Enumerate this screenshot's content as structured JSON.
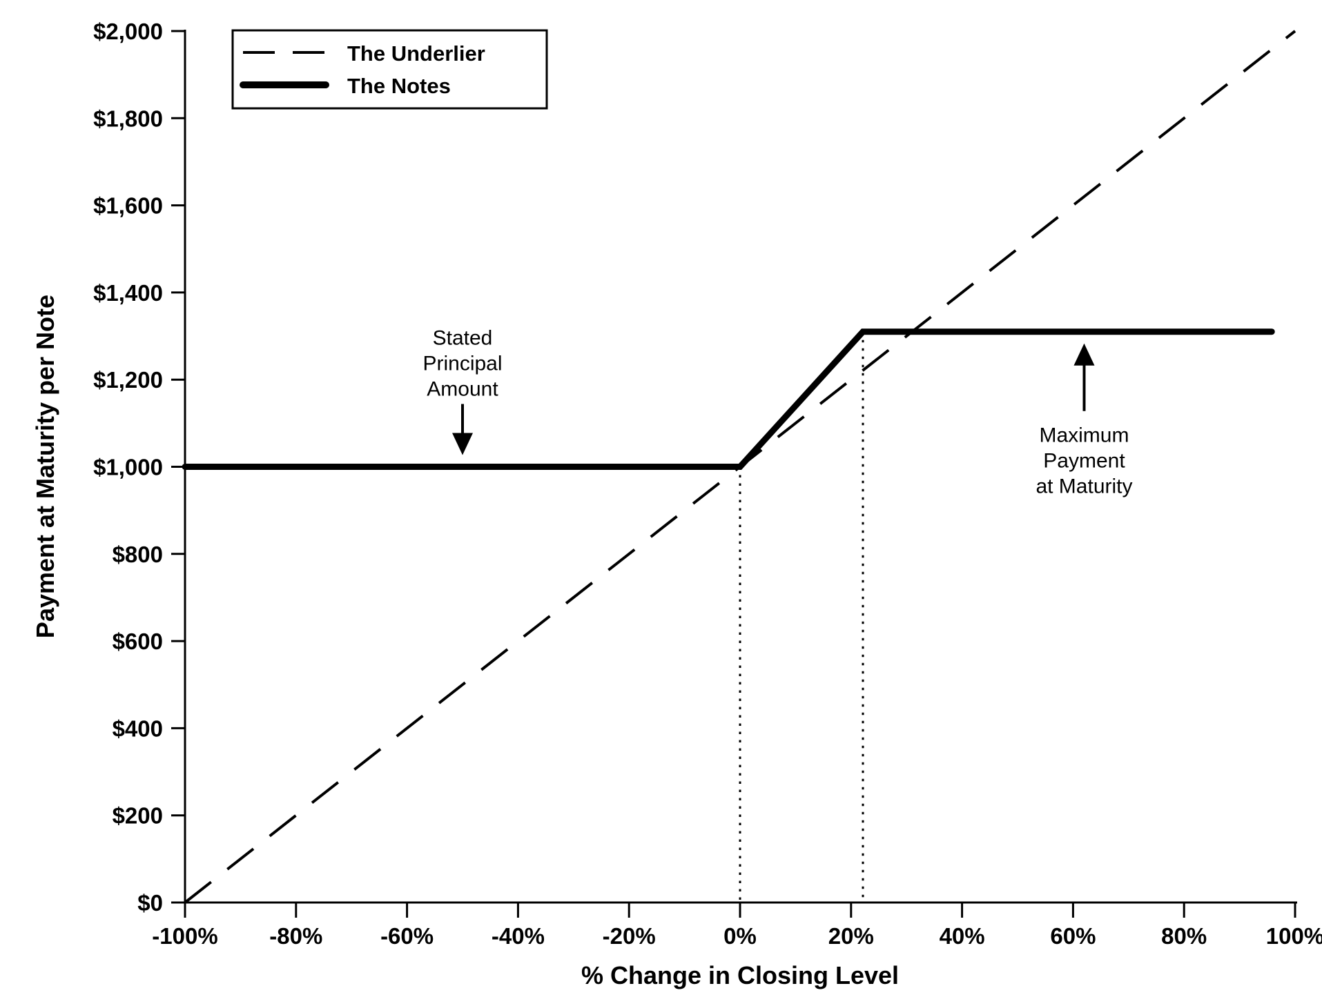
{
  "chart_data": {
    "type": "line",
    "title": "",
    "xlabel": "% Change in Closing Level",
    "ylabel": "Payment at Maturity per Note",
    "xlim": [
      -100,
      100
    ],
    "ylim": [
      0,
      2000
    ],
    "grid": false,
    "background_color": "#ffffff",
    "line_color": "#000000",
    "x_ticks": [
      {
        "value": -100,
        "label": "-100%"
      },
      {
        "value": -80,
        "label": "-80%"
      },
      {
        "value": -60,
        "label": "-60%"
      },
      {
        "value": -40,
        "label": "-40%"
      },
      {
        "value": -20,
        "label": "-20%"
      },
      {
        "value": 0,
        "label": "0%"
      },
      {
        "value": 20,
        "label": "20%"
      },
      {
        "value": 40,
        "label": "40%"
      },
      {
        "value": 60,
        "label": "60%"
      },
      {
        "value": 80,
        "label": "80%"
      },
      {
        "value": 100,
        "label": "100%"
      }
    ],
    "y_ticks": [
      {
        "value": 0,
        "label": "$0"
      },
      {
        "value": 200,
        "label": "$200"
      },
      {
        "value": 400,
        "label": "$400"
      },
      {
        "value": 600,
        "label": "$600"
      },
      {
        "value": 800,
        "label": "$800"
      },
      {
        "value": 1000,
        "label": "$1,000"
      },
      {
        "value": 1200,
        "label": "$1,200"
      },
      {
        "value": 1400,
        "label": "$1,400"
      },
      {
        "value": 1600,
        "label": "$1,600"
      },
      {
        "value": 1800,
        "label": "$1,800"
      },
      {
        "value": 2000,
        "label": "$2,000"
      }
    ],
    "legend": {
      "position": "top-left",
      "entries": [
        {
          "name": "The Underlier",
          "style": "dashed"
        },
        {
          "name": "The Notes",
          "style": "solid-thick"
        }
      ]
    },
    "series": [
      {
        "name": "The Underlier",
        "style": "dashed",
        "stroke_width": 4,
        "points": [
          [
            -100,
            0
          ],
          [
            100,
            2000
          ]
        ]
      },
      {
        "name": "The Notes",
        "style": "solid-thick",
        "stroke_width": 9,
        "points": [
          [
            -100,
            1000
          ],
          [
            0,
            1000
          ],
          [
            22.14,
            1310
          ],
          [
            95.8,
            1310
          ]
        ]
      }
    ],
    "reference_lines": [
      {
        "x": 0,
        "y_top": 1000,
        "style": "dotted"
      },
      {
        "x": 22.14,
        "y_top": 1310,
        "style": "dotted"
      }
    ],
    "annotations": [
      {
        "id": "stated-principal",
        "lines": [
          "Stated",
          "Principal",
          "Amount"
        ],
        "x": -50,
        "target_value": 1000,
        "arrow": "down"
      },
      {
        "id": "maximum-payment",
        "lines": [
          "Maximum",
          "Payment",
          "at Maturity"
        ],
        "x": 62,
        "target_value": 1310,
        "arrow": "up"
      }
    ],
    "key_values": {
      "stated_principal_amount": 1000,
      "maximum_payment_at_maturity": 1310,
      "cap_change_pct": 22.14
    }
  }
}
